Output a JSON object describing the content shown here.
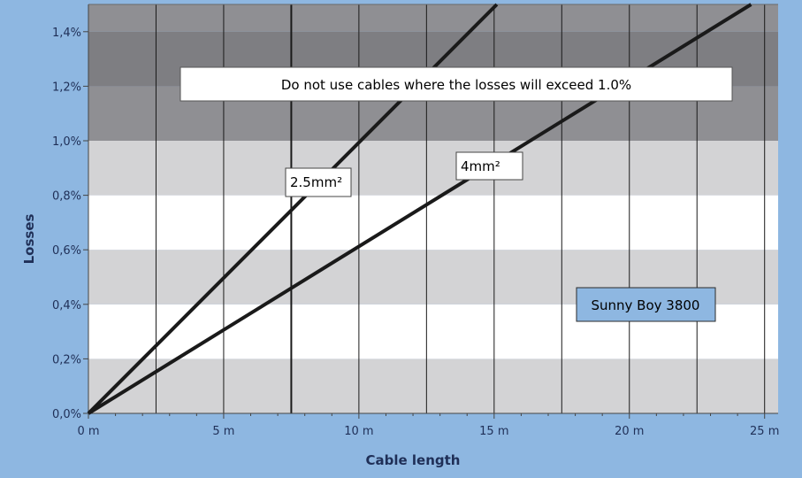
{
  "chart_data": {
    "type": "line",
    "title": "",
    "xlabel": "Cable length",
    "ylabel": "Losses",
    "xlim": [
      0,
      25.5
    ],
    "ylim": [
      0,
      1.5
    ],
    "x_ticks": [
      0,
      5,
      10,
      15,
      20,
      25
    ],
    "x_tick_labels": [
      "0 m",
      "5 m",
      "10 m",
      "15 m",
      "20 m",
      "25 m"
    ],
    "y_ticks": [
      0,
      0.2,
      0.4,
      0.6,
      0.8,
      1.0,
      1.2,
      1.4
    ],
    "y_tick_labels": [
      "0,0%",
      "0,2%",
      "0,4%",
      "0,6%",
      "0,8%",
      "1,0%",
      "1,2%",
      "1,4%"
    ],
    "grid": true,
    "series": [
      {
        "name": "2.5mm²",
        "x": [
          0,
          15.1
        ],
        "y": [
          0,
          1.5
        ]
      },
      {
        "name": "4mm²",
        "x": [
          0,
          24.5
        ],
        "y": [
          0,
          1.5
        ]
      }
    ],
    "bands": [
      {
        "from": 0.0,
        "to": 0.2,
        "color": "#d3d3d5"
      },
      {
        "from": 0.2,
        "to": 0.4,
        "color": "#ffffff"
      },
      {
        "from": 0.4,
        "to": 0.6,
        "color": "#d3d3d5"
      },
      {
        "from": 0.6,
        "to": 0.8,
        "color": "#ffffff"
      },
      {
        "from": 0.8,
        "to": 1.0,
        "color": "#d3d3d5"
      },
      {
        "from": 1.0,
        "to": 1.2,
        "color": "#8f8f93"
      },
      {
        "from": 1.2,
        "to": 1.4,
        "color": "#7e7e82"
      },
      {
        "from": 1.4,
        "to": 1.5,
        "color": "#8f8f93"
      }
    ],
    "annotations": {
      "warning": "Do not use cables where the losses will exceed 1.0%",
      "model": "Sunny Boy 3800"
    }
  },
  "colors": {
    "frame_background": "#8eb7e1",
    "model_box": "#8eb7e1",
    "line": "#1a1a1a"
  }
}
